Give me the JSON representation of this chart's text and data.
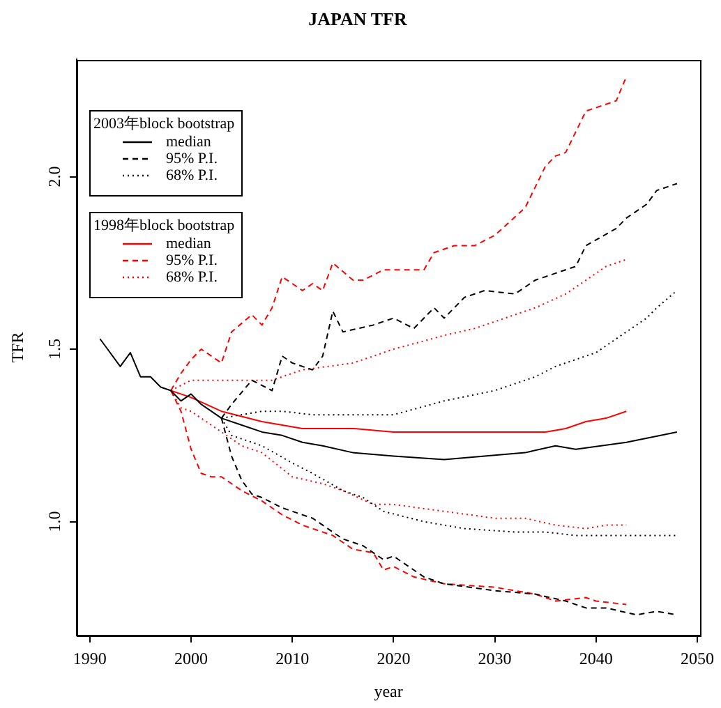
{
  "chart_data": {
    "type": "line",
    "title": "JAPAN TFR",
    "xlabel": "year",
    "ylabel": "TFR",
    "xlim": [
      1988.7,
      2050.3
    ],
    "xticks": [
      1990,
      2000,
      2010,
      2020,
      2030,
      2040,
      2050
    ],
    "ylim": [
      0.67,
      2.34
    ],
    "yticks": [
      {
        "value": 1,
        "label": "1.0"
      },
      1.5,
      {
        "value": 2,
        "label": "2.0"
      }
    ],
    "legend": "top left",
    "annotations": [
      "2003年block bootstrap",
      "1998年block bootstrap"
    ],
    "series": [
      {
        "name": "median",
        "color": "#000000",
        "line_style": "solid",
        "x": [
          1991,
          1992,
          1993,
          1994,
          1995,
          1996,
          1997,
          1998,
          1999,
          2000,
          2001,
          2002,
          2003,
          2005,
          2007,
          2009,
          2011,
          2013,
          2016,
          2020,
          2025,
          2029,
          2033,
          2036,
          2038,
          2043,
          2048
        ],
        "values": [
          1.53,
          1.49,
          1.45,
          1.49,
          1.42,
          1.42,
          1.39,
          1.38,
          1.35,
          1.37,
          1.34,
          1.32,
          1.3,
          1.28,
          1.26,
          1.25,
          1.23,
          1.22,
          1.2,
          1.19,
          1.18,
          1.19,
          1.2,
          1.22,
          1.21,
          1.23,
          1.26
        ]
      },
      {
        "name": "95% P.I.",
        "color": "#000000",
        "line_style": "dashed",
        "x": [
          2003,
          2004,
          2006,
          2008,
          2009,
          2010,
          2012,
          2013,
          2014,
          2015,
          2018,
          2020,
          2022,
          2024,
          2025,
          2027,
          2029,
          2032,
          2034,
          2036,
          2038,
          2039,
          2042,
          2043,
          2045,
          2046,
          2048
        ],
        "values": [
          1.3,
          1.34,
          1.41,
          1.38,
          1.48,
          1.46,
          1.44,
          1.48,
          1.61,
          1.55,
          1.57,
          1.59,
          1.56,
          1.62,
          1.59,
          1.65,
          1.67,
          1.66,
          1.7,
          1.72,
          1.74,
          1.8,
          1.85,
          1.88,
          1.92,
          1.96,
          1.98
        ]
      },
      {
        "color": "#000000",
        "line_style": "dashed",
        "x": [
          2003,
          2004,
          2005,
          2006,
          2007,
          2009,
          2012,
          2015,
          2017,
          2019,
          2020,
          2021,
          2023,
          2025,
          2030,
          2034,
          2037,
          2039,
          2041,
          2044,
          2046,
          2048
        ],
        "values": [
          1.3,
          1.19,
          1.12,
          1.08,
          1.07,
          1.04,
          1.01,
          0.95,
          0.93,
          0.89,
          0.9,
          0.88,
          0.84,
          0.82,
          0.8,
          0.79,
          0.77,
          0.75,
          0.75,
          0.73,
          0.74,
          0.73
        ]
      },
      {
        "name": "68% P.I.",
        "color": "#000000",
        "line_style": "dotted",
        "x": [
          2003,
          2007,
          2009,
          2012,
          2016,
          2020,
          2025,
          2030,
          2034,
          2036,
          2040,
          2043,
          2045,
          2046,
          2048
        ],
        "values": [
          1.3,
          1.32,
          1.32,
          1.31,
          1.31,
          1.31,
          1.35,
          1.38,
          1.42,
          1.45,
          1.49,
          1.55,
          1.59,
          1.62,
          1.67
        ]
      },
      {
        "color": "#000000",
        "line_style": "dotted",
        "x": [
          2003,
          2004,
          2007,
          2010,
          2012,
          2015,
          2017,
          2019,
          2023,
          2027,
          2032,
          2035,
          2038,
          2041,
          2043,
          2048
        ],
        "values": [
          1.3,
          1.25,
          1.22,
          1.17,
          1.14,
          1.09,
          1.07,
          1.03,
          1.0,
          0.98,
          0.97,
          0.97,
          0.96,
          0.96,
          0.96,
          0.96
        ]
      },
      {
        "name": "median",
        "color": "#ff0000",
        "line_style": "solid",
        "x": [
          1998,
          2000,
          2003,
          2007,
          2011,
          2016,
          2020,
          2025,
          2030,
          2035,
          2037,
          2039,
          2041,
          2043
        ],
        "values": [
          1.38,
          1.36,
          1.32,
          1.29,
          1.27,
          1.27,
          1.26,
          1.26,
          1.26,
          1.26,
          1.27,
          1.29,
          1.3,
          1.32
        ]
      },
      {
        "name": "95% P.I.",
        "color": "#ff0000",
        "line_style": "dashed",
        "x": [
          1998,
          1999,
          2000,
          2001,
          2002,
          2003,
          2004,
          2006,
          2007,
          2008,
          2009,
          2011,
          2012,
          2013,
          2014,
          2016,
          2017,
          2019,
          2023,
          2024,
          2026,
          2028,
          2030,
          2033,
          2035,
          2036,
          2037,
          2039,
          2040,
          2042,
          2043
        ],
        "values": [
          1.38,
          1.43,
          1.47,
          1.5,
          1.48,
          1.46,
          1.55,
          1.6,
          1.57,
          1.62,
          1.71,
          1.67,
          1.69,
          1.67,
          1.75,
          1.7,
          1.7,
          1.73,
          1.73,
          1.78,
          1.8,
          1.8,
          1.83,
          1.91,
          2.03,
          2.06,
          2.07,
          2.19,
          2.2,
          2.22,
          2.29
        ]
      },
      {
        "color": "#ff0000",
        "line_style": "dashed",
        "x": [
          1998,
          1999,
          2000,
          2001,
          2002,
          2003,
          2005,
          2007,
          2009,
          2011,
          2014,
          2016,
          2018,
          2019,
          2020,
          2022,
          2025,
          2030,
          2034,
          2036,
          2039,
          2040,
          2043
        ],
        "values": [
          1.38,
          1.32,
          1.21,
          1.14,
          1.13,
          1.13,
          1.09,
          1.06,
          1.02,
          0.99,
          0.96,
          0.92,
          0.91,
          0.86,
          0.87,
          0.84,
          0.82,
          0.81,
          0.79,
          0.77,
          0.78,
          0.77,
          0.76
        ]
      },
      {
        "name": "68% P.I.",
        "color": "#ff0000",
        "line_style": "dotted",
        "x": [
          1998,
          2000,
          2003,
          2006,
          2008,
          2011,
          2016,
          2020,
          2025,
          2028,
          2030,
          2034,
          2037,
          2039,
          2041,
          2043
        ],
        "values": [
          1.38,
          1.41,
          1.41,
          1.41,
          1.41,
          1.44,
          1.46,
          1.5,
          1.54,
          1.56,
          1.58,
          1.62,
          1.66,
          1.7,
          1.74,
          1.76
        ]
      },
      {
        "color": "#ff0000",
        "line_style": "dotted",
        "x": [
          1998,
          1999,
          2000,
          2003,
          2005,
          2007,
          2010,
          2013,
          2015,
          2018,
          2020,
          2025,
          2030,
          2033,
          2036,
          2039,
          2041,
          2043
        ],
        "values": [
          1.38,
          1.33,
          1.32,
          1.26,
          1.22,
          1.2,
          1.13,
          1.11,
          1.09,
          1.05,
          1.05,
          1.03,
          1.01,
          1.01,
          0.99,
          0.98,
          0.99,
          0.99
        ]
      }
    ]
  }
}
